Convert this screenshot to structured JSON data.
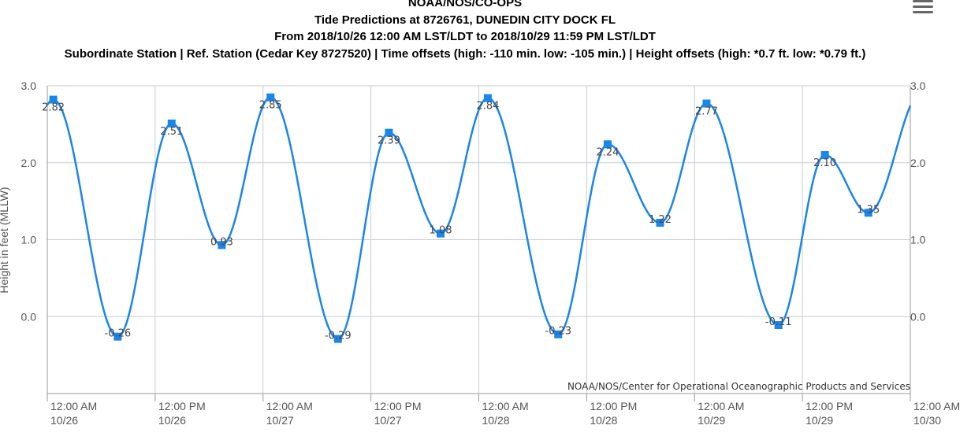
{
  "header": {
    "line1": "NOAA/NOS/CO-OPS",
    "line2": "Tide Predictions at 8726761, DUNEDIN CITY DOCK FL",
    "line3": "From 2018/10/26 12:00 AM LST/LDT to 2018/10/29 11:59 PM LST/LDT",
    "line4": "Subordinate Station | Ref. Station (Cedar Key 8727520) | Time offsets (high: -110 min. low: -105 min.) | Height offsets (high: *0.7 ft. low: *0.79 ft.)"
  },
  "menu_icon": "hamburger-menu-icon",
  "credit": "NOAA/NOS/Center for Operational Oceanographic Products and Services",
  "colors": {
    "line": "#1a86e8",
    "marker": "#1a86e8",
    "grid": "#c8ccd6"
  },
  "chart_data": {
    "type": "line",
    "ylabel": "Height in feet (MLLW)",
    "ylim": [
      -1.0,
      3.0
    ],
    "yticks": [
      "3.0",
      "2.0",
      "1.0",
      "0.0"
    ],
    "y_right_ticks": [
      "3.0",
      "2.0",
      "1.0",
      "0.0"
    ],
    "xlim_hours": [
      0,
      96
    ],
    "xticks": [
      {
        "time": "12:00 AM",
        "date": "10/26"
      },
      {
        "time": "12:00 PM",
        "date": "10/26"
      },
      {
        "time": "12:00 AM",
        "date": "10/27"
      },
      {
        "time": "12:00 PM",
        "date": "10/27"
      },
      {
        "time": "12:00 AM",
        "date": "10/28"
      },
      {
        "time": "12:00 PM",
        "date": "10/28"
      },
      {
        "time": "12:00 AM",
        "date": "10/29"
      },
      {
        "time": "12:00 PM",
        "date": "10/29"
      },
      {
        "time": "12:00 AM",
        "date": "10/30"
      }
    ],
    "series": [
      {
        "points": [
          {
            "t": "2018-10-26 00:40",
            "y": 2.82,
            "label": "2.82"
          },
          {
            "t": "2018-10-26 07:50",
            "y": -0.26,
            "label": "-0.26"
          },
          {
            "t": "2018-10-26 13:50",
            "y": 2.51,
            "label": "2.51"
          },
          {
            "t": "2018-10-26 19:25",
            "y": 0.93,
            "label": "0.93"
          },
          {
            "t": "2018-10-27 00:50",
            "y": 2.85,
            "label": "2.85"
          },
          {
            "t": "2018-10-27 08:20",
            "y": -0.29,
            "label": "-0.29"
          },
          {
            "t": "2018-10-27 14:00",
            "y": 2.39,
            "label": "2.39"
          },
          {
            "t": "2018-10-27 19:45",
            "y": 1.08,
            "label": "1.08"
          },
          {
            "t": "2018-10-28 01:00",
            "y": 2.84,
            "label": "2.84"
          },
          {
            "t": "2018-10-28 08:50",
            "y": -0.23,
            "label": "-0.23"
          },
          {
            "t": "2018-10-28 14:20",
            "y": 2.24,
            "label": "2.24"
          },
          {
            "t": "2018-10-28 20:10",
            "y": 1.22,
            "label": "1.22"
          },
          {
            "t": "2018-10-29 01:20",
            "y": 2.77,
            "label": "2.77"
          },
          {
            "t": "2018-10-29 09:20",
            "y": -0.11,
            "label": "-0.11"
          },
          {
            "t": "2018-10-29 14:30",
            "y": 2.1,
            "label": "2.10"
          },
          {
            "t": "2018-10-29 19:20",
            "y": 1.35,
            "label": "1.35"
          }
        ]
      }
    ]
  }
}
